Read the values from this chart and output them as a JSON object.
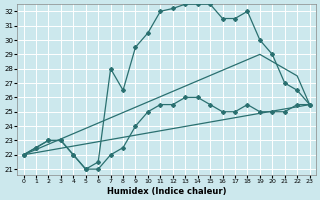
{
  "xlabel": "Humidex (Indice chaleur)",
  "bg_color": "#cce8ed",
  "grid_color": "#ffffff",
  "line_color": "#2a7070",
  "xlim": [
    -0.5,
    23.5
  ],
  "ylim_min": 20.6,
  "ylim_max": 32.5,
  "xticks": [
    0,
    1,
    2,
    3,
    4,
    5,
    6,
    7,
    8,
    9,
    10,
    11,
    12,
    13,
    14,
    15,
    16,
    17,
    18,
    19,
    20,
    21,
    22,
    23
  ],
  "yticks": [
    21,
    22,
    23,
    24,
    25,
    26,
    27,
    28,
    29,
    30,
    31,
    32
  ],
  "line1_x": [
    0,
    1,
    2,
    3,
    4,
    5,
    6,
    7,
    8,
    9,
    10,
    11,
    12,
    13,
    14,
    15,
    16,
    17,
    18,
    19,
    20,
    21,
    22,
    23
  ],
  "line1_y": [
    22,
    22.5,
    23,
    23,
    22,
    21,
    21,
    22,
    22.5,
    24,
    25,
    25.5,
    25.5,
    26,
    26,
    25.5,
    25,
    25,
    25.5,
    25,
    25,
    25,
    25.5,
    25.5
  ],
  "line2_x": [
    0,
    1,
    2,
    3,
    4,
    5,
    6,
    7,
    8,
    9,
    10,
    11,
    12,
    13,
    14,
    15,
    16,
    17,
    18,
    19,
    20,
    21,
    22,
    23
  ],
  "line2_y": [
    22,
    22.5,
    23,
    23,
    22,
    21,
    21.5,
    28,
    26.5,
    29.5,
    30.5,
    32,
    32.2,
    32.5,
    32.5,
    32.5,
    31.5,
    31.5,
    32,
    30,
    29,
    27,
    26.5,
    25.5
  ],
  "line3_x": [
    0,
    23
  ],
  "line3_y": [
    22,
    25.5
  ],
  "line4_x": [
    0,
    19,
    22,
    23
  ],
  "line4_y": [
    22,
    29,
    27.5,
    25.5
  ]
}
